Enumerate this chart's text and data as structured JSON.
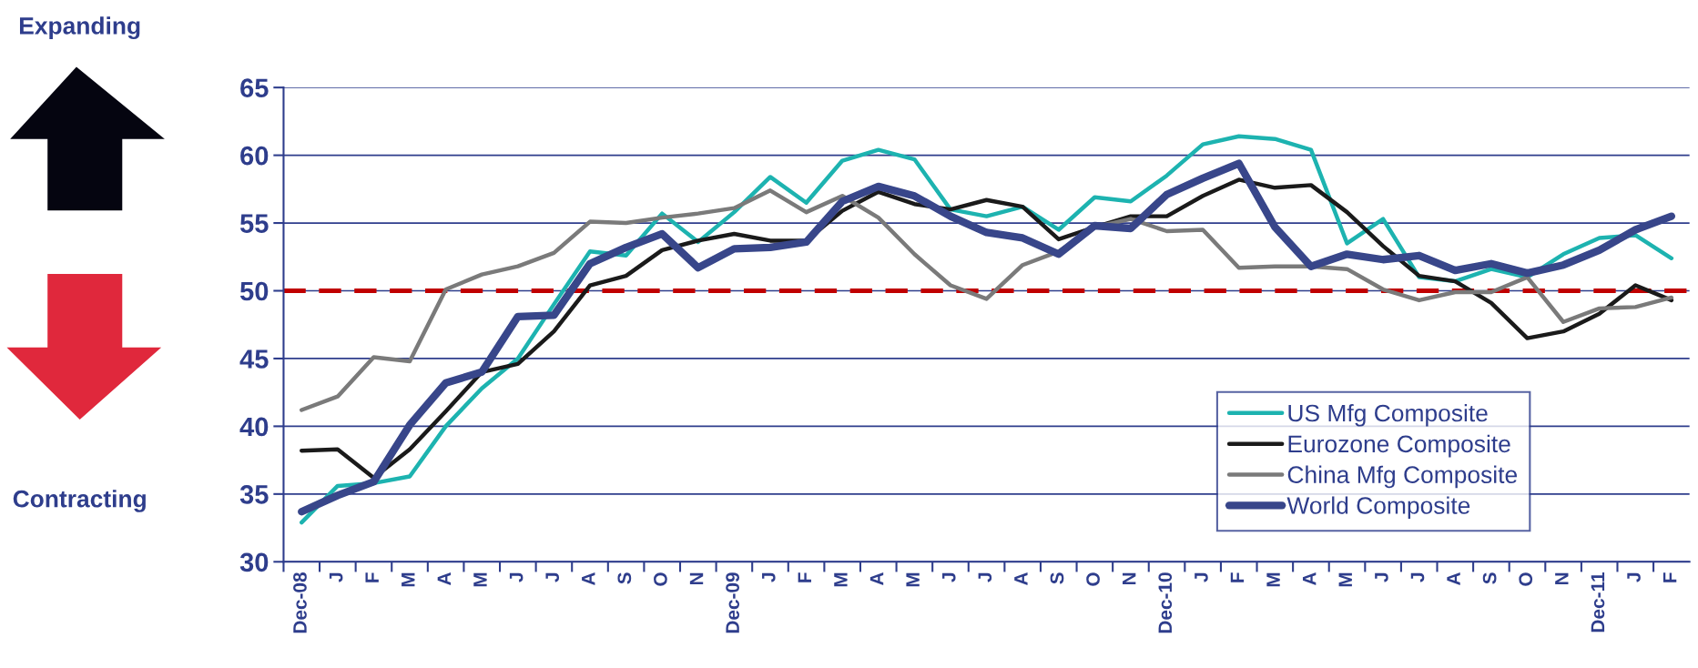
{
  "chart_data": {
    "type": "line",
    "categories": [
      "Dec-08",
      "J",
      "F",
      "M",
      "A",
      "M",
      "J",
      "J",
      "A",
      "S",
      "O",
      "N",
      "Dec-09",
      "J",
      "F",
      "M",
      "A",
      "M",
      "J",
      "J",
      "A",
      "S",
      "O",
      "N",
      "Dec-10",
      "J",
      "F",
      "M",
      "A",
      "M",
      "J",
      "J",
      "A",
      "S",
      "O",
      "N",
      "Dec-11",
      "J",
      "F"
    ],
    "series": [
      {
        "name": "US Mfg Composite",
        "color": "#1db3b0",
        "values": [
          32.9,
          35.6,
          35.8,
          36.3,
          40,
          42.8,
          45,
          49,
          52.9,
          52.6,
          55.7,
          53.6,
          55.8,
          58.4,
          56.5,
          59.6,
          60.4,
          59.7,
          56,
          55.5,
          56.2,
          54.5,
          56.9,
          56.6,
          58.5,
          60.8,
          61.4,
          61.2,
          60.4,
          53.5,
          55.3,
          51,
          50.7,
          51.6,
          51,
          52.7,
          53.9,
          54.1,
          52.4
        ]
      },
      {
        "name": "Eurozone Composite",
        "color": "#1a1a1a",
        "values": [
          38.2,
          38.3,
          36.2,
          38.3,
          41.1,
          44,
          44.6,
          47,
          50.4,
          51.1,
          53,
          53.7,
          54.2,
          53.7,
          53.7,
          55.9,
          57.3,
          56.4,
          56,
          56.7,
          56.2,
          53.8,
          54.7,
          55.5,
          55.5,
          57,
          58.2,
          57.6,
          57.8,
          55.8,
          53.3,
          51.1,
          50.7,
          49.1,
          46.5,
          47,
          48.3,
          50.4,
          49.3
        ]
      },
      {
        "name": "China Mfg Composite",
        "color": "#7a7a7a",
        "values": [
          41.2,
          42.2,
          45.1,
          44.8,
          50.1,
          51.2,
          51.8,
          52.8,
          55.1,
          55,
          55.4,
          55.7,
          56.1,
          57.4,
          55.8,
          57,
          55.4,
          52.7,
          50.4,
          49.4,
          51.9,
          52.9,
          54.7,
          55.3,
          54.4,
          54.5,
          51.7,
          51.8,
          51.8,
          51.6,
          50.1,
          49.3,
          49.9,
          49.9,
          51,
          47.7,
          48.7,
          48.8,
          49.5
        ]
      },
      {
        "name": "World Composite",
        "color": "#38468a",
        "values": [
          33.7,
          34.9,
          35.9,
          40.1,
          43.2,
          44,
          48.1,
          48.2,
          52,
          53.2,
          54.2,
          51.7,
          53.1,
          53.2,
          53.6,
          56.6,
          57.7,
          57,
          55.5,
          54.3,
          53.9,
          52.7,
          54.8,
          54.6,
          57.1,
          58.3,
          59.4,
          54.7,
          51.8,
          52.7,
          52.3,
          52.6,
          51.5,
          52,
          51.3,
          51.9,
          53,
          54.5,
          55.5
        ]
      }
    ],
    "ylim": [
      30,
      65
    ],
    "yticks": [
      30,
      35,
      40,
      45,
      50,
      55,
      60,
      65
    ],
    "grid": "y",
    "legend": "bottom right",
    "ref_lines": [
      {
        "axis": "y",
        "value": 50,
        "color": "#c00000",
        "line_style": "dashed"
      }
    ],
    "annotations": [
      "Expanding",
      "Contracting"
    ]
  }
}
